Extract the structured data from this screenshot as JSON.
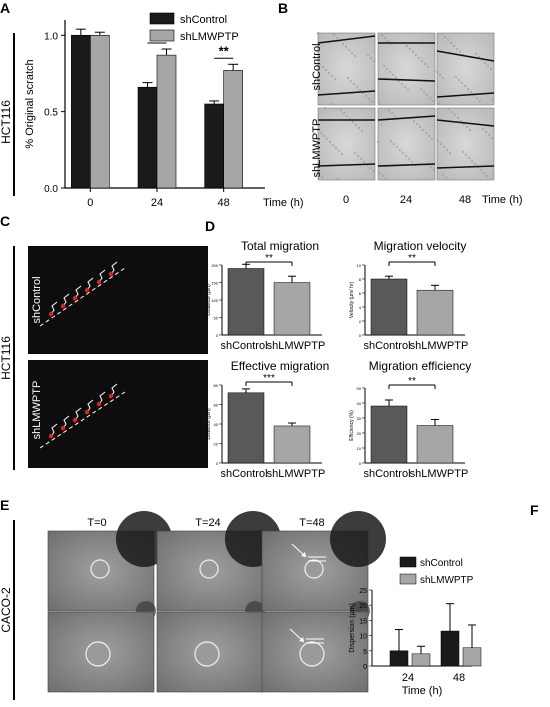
{
  "figure": {
    "panels": {
      "A": "A",
      "B": "B",
      "C": "C",
      "D": "D",
      "E": "E",
      "F": "F"
    },
    "cell_lines": {
      "hct116": "HCT116",
      "caco2": "CACO-2"
    },
    "conditions": {
      "control": "shControl",
      "knockdown": "shLMWPTP"
    },
    "time_label": "Time  (h)",
    "time_label_F": "Time  (h)",
    "panelB": {
      "times": [
        "0",
        "24",
        "48"
      ]
    },
    "panelE": {
      "times": [
        "T=0",
        "T=24",
        "T=48"
      ]
    },
    "colors": {
      "dark_bar": "#1a1a1a",
      "light_bar": "#a6a6a6",
      "d_dark": "#595959",
      "d_light": "#a6a6a6"
    }
  },
  "chart_data": [
    {
      "id": "A",
      "type": "bar",
      "categories": [
        "0",
        "24",
        "48"
      ],
      "ylabel": "% Original scratch",
      "xlabel": "Time  (h)",
      "ylim": [
        0,
        1.1
      ],
      "yticks": [
        "0.0",
        "0.5",
        "1.0"
      ],
      "legend": "top",
      "series": [
        {
          "name": "shControl",
          "values": [
            1.0,
            0.66,
            0.55
          ],
          "errors": [
            0.04,
            0.03,
            0.02
          ]
        },
        {
          "name": "shLMWPTP",
          "values": [
            1.0,
            0.87,
            0.77
          ],
          "errors": [
            0.02,
            0.04,
            0.04
          ]
        }
      ],
      "significance": [
        {
          "category": "24",
          "label": "**"
        },
        {
          "category": "48",
          "label": "**"
        }
      ]
    },
    {
      "id": "D1",
      "type": "bar",
      "title": "Total migration",
      "ylabel": "Distance (µm)",
      "categories": [
        "shControl",
        "shLMWPTP"
      ],
      "values": [
        190,
        150
      ],
      "errors": [
        12,
        18
      ],
      "ylim": [
        0,
        200
      ],
      "yticks": [
        "0",
        "50",
        "100",
        "150",
        "200"
      ],
      "significance": "**"
    },
    {
      "id": "D2",
      "type": "bar",
      "title": "Migration velocity",
      "ylabel": "Velocity (µm/ hr)",
      "categories": [
        "shControl",
        "shLMWPTP"
      ],
      "values": [
        8.0,
        6.4
      ],
      "errors": [
        0.4,
        0.7
      ],
      "ylim": [
        0,
        10
      ],
      "yticks": [
        "0",
        "2",
        "4",
        "6",
        "8",
        "10"
      ],
      "significance": "**"
    },
    {
      "id": "D3",
      "type": "bar",
      "title": "Effective migration",
      "ylabel": "Distance (µm)",
      "categories": [
        "shControl",
        "shLMWPTP"
      ],
      "values": [
        72,
        38
      ],
      "errors": [
        4,
        3
      ],
      "ylim": [
        0,
        80
      ],
      "yticks": [
        "0",
        "20",
        "40",
        "60",
        "80"
      ],
      "significance": "***"
    },
    {
      "id": "D4",
      "type": "bar",
      "title": "Migration efficiency",
      "ylabel": "Efficiency (%)",
      "categories": [
        "shControl",
        "shLMWPTP"
      ],
      "values": [
        38,
        25
      ],
      "errors": [
        4,
        4
      ],
      "ylim": [
        0,
        50
      ],
      "yticks": [
        "0",
        "10",
        "20",
        "30",
        "40",
        "50"
      ],
      "significance": "**"
    },
    {
      "id": "F",
      "type": "bar",
      "ylabel": "Dispersion (µm)",
      "xlabel": "Time  (h)",
      "categories": [
        "24",
        "48"
      ],
      "ylim": [
        0,
        25
      ],
      "yticks": [
        "0",
        "5",
        "10",
        "15",
        "20",
        "25"
      ],
      "legend": "top-left",
      "series": [
        {
          "name": "shControl",
          "values": [
            5,
            11.5
          ],
          "errors": [
            7,
            9
          ]
        },
        {
          "name": "shLMWPTP",
          "values": [
            4,
            6
          ],
          "errors": [
            2.5,
            7.5
          ]
        }
      ]
    }
  ]
}
